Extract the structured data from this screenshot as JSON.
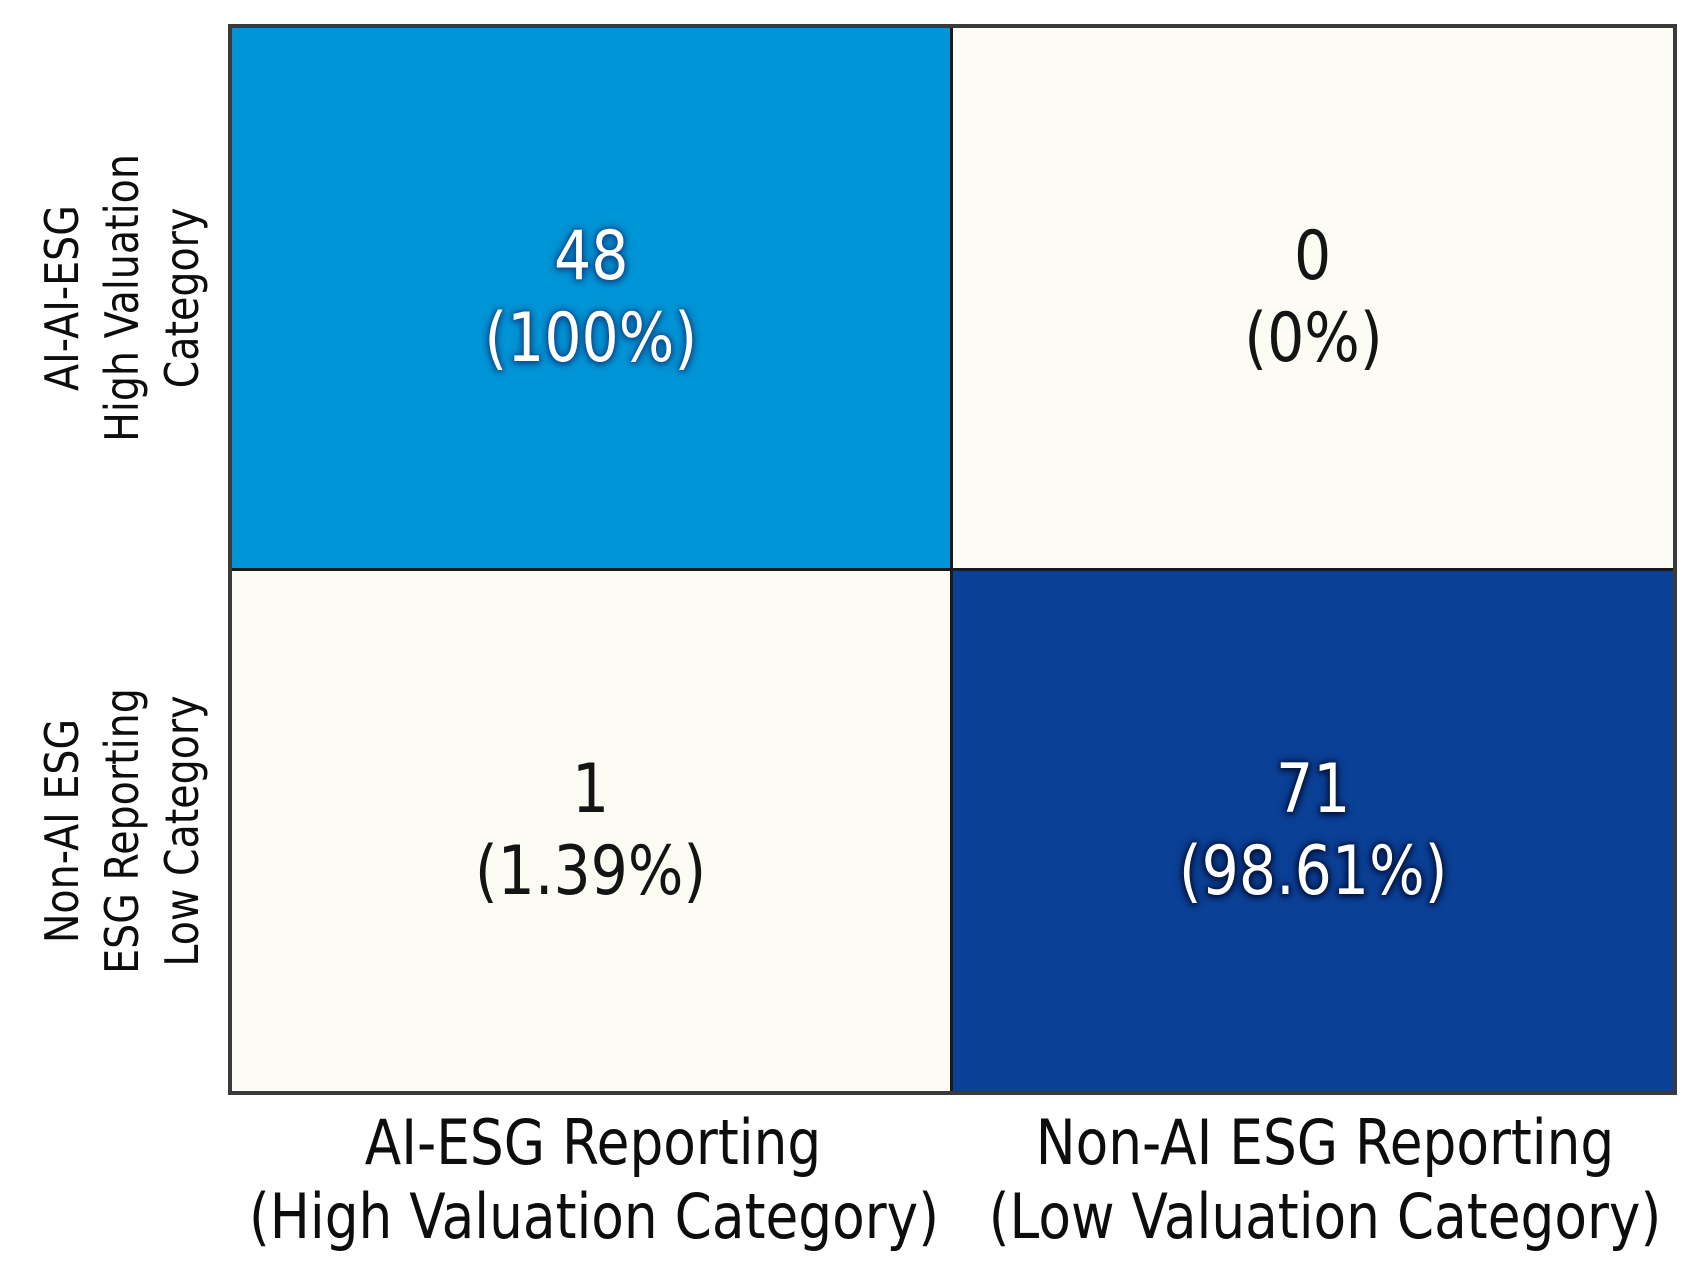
{
  "figure": {
    "background": "#ffffff",
    "grid_border_color": "#3a3a3a",
    "inner_line_color": "#1a1a1a"
  },
  "chart_data": {
    "type": "heatmap",
    "subtype": "confusion_matrix",
    "rows": [
      {
        "label_lines": [
          "AI-AI-ESG",
          "High Valuation",
          "Category"
        ]
      },
      {
        "label_lines": [
          "Non-AI ESG",
          "ESG Reporting",
          "Low Category"
        ]
      }
    ],
    "columns": [
      {
        "label_lines": [
          "AI-ESG Reporting",
          "(High Valuation Category)"
        ]
      },
      {
        "label_lines": [
          "Non-AI ESG Reporting",
          "(Low Valuation Category)"
        ]
      }
    ],
    "cells": [
      [
        {
          "value": "48",
          "percent_label": "(100%)",
          "bg": "#0095d6",
          "fg": "#ffffff",
          "glow": "#0d4b8c"
        },
        {
          "value": "0",
          "percent_label": "(0%)",
          "bg": "#fcfcf4",
          "fg": "#141414"
        }
      ],
      [
        {
          "value": "1",
          "percent_label": "(1.39%)",
          "bg": "#fcfcf4",
          "fg": "#141414"
        },
        {
          "value": "71",
          "percent_label": "(98.61%)",
          "bg": "#0a4096",
          "fg": "#ffffff",
          "glow": "#02143c"
        }
      ]
    ]
  }
}
